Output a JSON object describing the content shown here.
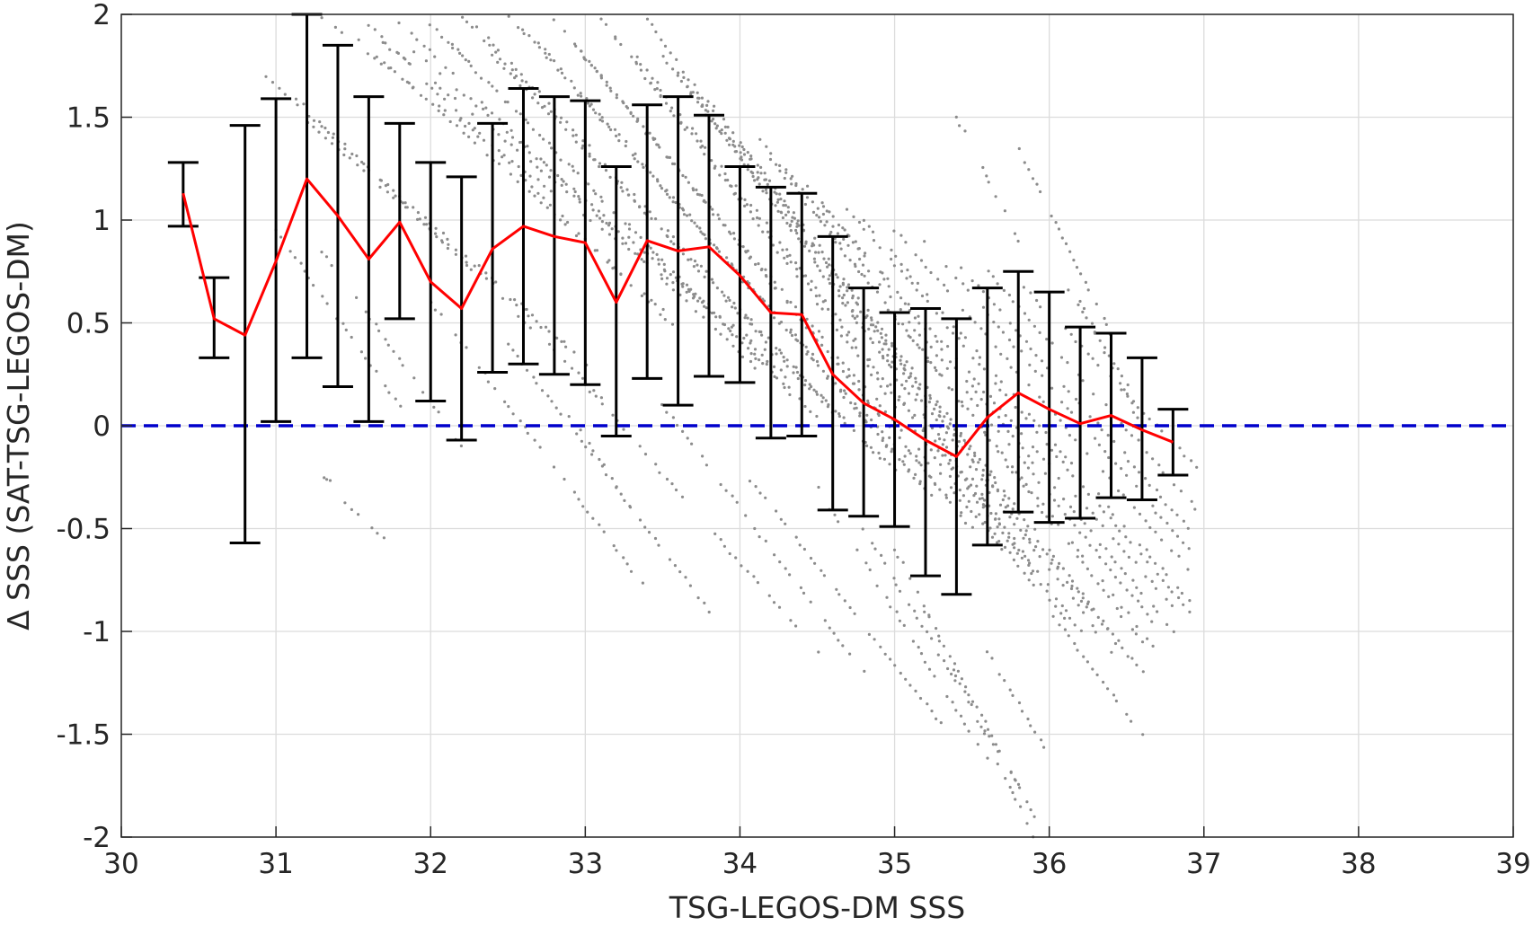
{
  "chart_data": {
    "type": "line",
    "title": "",
    "xlabel": "TSG-LEGOS-DM SSS",
    "ylabel": "Δ SSS (SAT-TSG-LEGOS-DM)",
    "xlim": [
      30,
      39
    ],
    "ylim": [
      -2,
      2
    ],
    "grid": true,
    "x_ticks": [
      "30",
      "31",
      "32",
      "33",
      "34",
      "35",
      "36",
      "37",
      "38",
      "39"
    ],
    "y_ticks": [
      "2",
      "1.5",
      "1",
      "0.5",
      "0",
      "-0.5",
      "-1",
      "-1.5",
      "-2"
    ],
    "x_tick_values": [
      30,
      31,
      32,
      33,
      34,
      35,
      36,
      37,
      38,
      39
    ],
    "y_tick_values": [
      2,
      1.5,
      1,
      0.5,
      0,
      -0.5,
      -1,
      -1.5,
      -2
    ],
    "reference_line": {
      "y": 0,
      "style": "dashed",
      "color": "#0000cc"
    },
    "series": [
      {
        "type": "line",
        "color": "#ff0000",
        "x": [
          30.4,
          30.6,
          30.8,
          31.0,
          31.2,
          31.4,
          31.6,
          31.8,
          32.0,
          32.2,
          32.4,
          32.6,
          32.8,
          33.0,
          33.2,
          33.4,
          33.6,
          33.8,
          34.0,
          34.2,
          34.4,
          34.6,
          34.8,
          35.0,
          35.2,
          35.4,
          35.6,
          35.8,
          36.0,
          36.2,
          36.4,
          36.6,
          36.8
        ],
        "values": [
          1.13,
          0.52,
          0.44,
          0.8,
          1.2,
          1.02,
          0.81,
          0.99,
          0.7,
          0.57,
          0.86,
          0.97,
          0.92,
          0.89,
          0.6,
          0.9,
          0.85,
          0.87,
          0.73,
          0.55,
          0.54,
          0.25,
          0.11,
          0.03,
          -0.07,
          -0.15,
          0.04,
          0.16,
          0.08,
          0.01,
          0.05,
          -0.02,
          -0.08
        ]
      },
      {
        "type": "errorbar",
        "color": "#000000",
        "x": [
          30.4,
          30.6,
          30.8,
          31.0,
          31.2,
          31.4,
          31.6,
          31.8,
          32.0,
          32.2,
          32.4,
          32.6,
          32.8,
          33.0,
          33.2,
          33.4,
          33.6,
          33.8,
          34.0,
          34.2,
          34.4,
          34.6,
          34.8,
          35.0,
          35.2,
          35.4,
          35.6,
          35.8,
          36.0,
          36.2,
          36.4,
          36.6,
          36.8
        ],
        "upper": [
          1.28,
          0.72,
          1.46,
          1.59,
          2.0,
          1.85,
          1.6,
          1.47,
          1.28,
          1.21,
          1.47,
          1.64,
          1.6,
          1.58,
          1.26,
          1.56,
          1.6,
          1.51,
          1.26,
          1.16,
          1.13,
          0.92,
          0.67,
          0.55,
          0.57,
          0.52,
          0.67,
          0.75,
          0.65,
          0.48,
          0.45,
          0.33,
          0.08
        ],
        "lower": [
          0.97,
          0.33,
          -0.57,
          0.02,
          0.33,
          0.19,
          0.02,
          0.52,
          0.12,
          -0.07,
          0.26,
          0.3,
          0.25,
          0.2,
          -0.05,
          0.23,
          0.1,
          0.24,
          0.21,
          -0.06,
          -0.05,
          -0.41,
          -0.44,
          -0.49,
          -0.73,
          -0.82,
          -0.58,
          -0.42,
          -0.47,
          -0.45,
          -0.35,
          -0.36,
          -0.24
        ]
      },
      {
        "type": "scatter",
        "color": "#8c8c8c",
        "note_streaks": [
          [
            30.9,
            1.72,
            32.9,
            0.38
          ],
          [
            31.1,
            1.62,
            33.1,
            0.14
          ],
          [
            31.2,
            1.48,
            33.0,
            0.3
          ],
          [
            31.3,
            1.98,
            33.7,
            0.62
          ],
          [
            31.5,
            1.9,
            33.5,
            0.56
          ],
          [
            31.6,
            1.95,
            33.6,
            0.46
          ],
          [
            31.7,
            1.86,
            34.2,
            0.34
          ],
          [
            31.8,
            1.96,
            34.1,
            0.28
          ],
          [
            31.9,
            1.82,
            34.3,
            0.24
          ],
          [
            32.0,
            1.95,
            34.4,
            0.1
          ],
          [
            32.1,
            1.88,
            34.5,
            0.04
          ],
          [
            32.2,
            1.99,
            34.6,
            0.06
          ],
          [
            32.3,
            1.94,
            34.9,
            -0.16
          ],
          [
            32.4,
            1.8,
            35.0,
            -0.22
          ],
          [
            32.5,
            1.99,
            35.1,
            -0.18
          ],
          [
            32.6,
            1.93,
            35.3,
            -0.4
          ],
          [
            32.7,
            1.86,
            35.2,
            -0.3
          ],
          [
            32.8,
            1.98,
            35.5,
            -0.5
          ],
          [
            32.9,
            1.88,
            35.6,
            -0.58
          ],
          [
            33.0,
            1.78,
            35.7,
            -0.6
          ],
          [
            33.1,
            1.98,
            35.8,
            -0.62
          ],
          [
            33.2,
            1.88,
            35.9,
            -0.78
          ],
          [
            33.3,
            1.82,
            35.9,
            -0.7
          ],
          [
            33.4,
            1.98,
            36.1,
            -0.94
          ],
          [
            33.5,
            1.8,
            36.0,
            -0.7
          ],
          [
            33.6,
            1.72,
            36.2,
            -1.0
          ],
          [
            33.7,
            1.62,
            36.3,
            -0.95
          ],
          [
            33.8,
            1.58,
            36.4,
            -1.1
          ],
          [
            33.9,
            1.45,
            36.5,
            -1.12
          ],
          [
            34.0,
            1.38,
            36.6,
            -1.2
          ],
          [
            34.1,
            1.42,
            36.6,
            -1.05
          ],
          [
            34.2,
            1.3,
            36.7,
            -1.1
          ],
          [
            34.3,
            1.24,
            36.7,
            -0.98
          ],
          [
            34.4,
            1.2,
            36.8,
            -1.0
          ],
          [
            34.5,
            1.1,
            36.8,
            -0.88
          ],
          [
            34.7,
            1.05,
            36.9,
            -0.9
          ],
          [
            34.8,
            1.0,
            36.9,
            -0.85
          ],
          [
            35.0,
            0.95,
            36.9,
            -0.7
          ],
          [
            35.2,
            0.9,
            36.9,
            -0.6
          ],
          [
            35.4,
            0.8,
            36.9,
            -0.5
          ],
          [
            35.6,
            0.75,
            36.95,
            -0.4
          ],
          [
            35.8,
            0.7,
            36.95,
            -0.2
          ],
          [
            31.0,
            0.95,
            31.8,
            0.1
          ],
          [
            31.3,
            0.85,
            32.2,
            -0.1
          ],
          [
            32.0,
            0.6,
            33.4,
            -0.8
          ],
          [
            32.5,
            0.4,
            33.8,
            -0.9
          ],
          [
            33.0,
            0.2,
            34.5,
            -1.1
          ],
          [
            33.5,
            0.1,
            34.8,
            -1.2
          ],
          [
            34.0,
            -0.2,
            35.3,
            -1.45
          ],
          [
            34.5,
            -0.3,
            35.6,
            -1.62
          ],
          [
            34.8,
            -0.5,
            35.8,
            -1.75
          ],
          [
            35.0,
            -0.6,
            35.9,
            -1.9
          ],
          [
            35.2,
            -0.9,
            35.9,
            -2.0
          ],
          [
            35.6,
            -1.1,
            36.0,
            -1.6
          ],
          [
            36.0,
            -0.9,
            36.6,
            -1.5
          ],
          [
            36.1,
            0.7,
            36.5,
            0.2
          ],
          [
            36.2,
            0.6,
            36.6,
            0.0
          ],
          [
            35.8,
            1.35,
            36.4,
            0.45
          ],
          [
            35.4,
            1.5,
            35.8,
            0.9
          ],
          [
            31.4,
            -0.35,
            31.7,
            -0.55
          ],
          [
            31.3,
            -0.25,
            31.35,
            -0.27
          ],
          [
            32.9,
            0.05,
            33.3,
            -0.4
          ]
        ]
      }
    ]
  }
}
